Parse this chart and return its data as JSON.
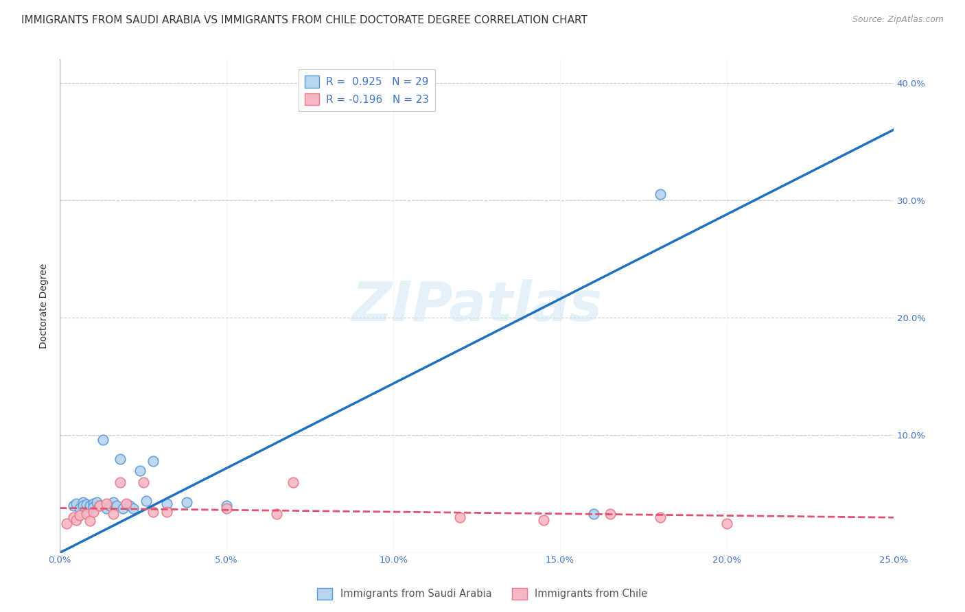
{
  "title": "IMMIGRANTS FROM SAUDI ARABIA VS IMMIGRANTS FROM CHILE DOCTORATE DEGREE CORRELATION CHART",
  "source": "Source: ZipAtlas.com",
  "ylabel": "Doctorate Degree",
  "xlim": [
    0.0,
    0.25
  ],
  "ylim": [
    0.0,
    0.42
  ],
  "xticks": [
    0.0,
    0.05,
    0.1,
    0.15,
    0.2,
    0.25
  ],
  "yticks": [
    0.0,
    0.1,
    0.2,
    0.3,
    0.4
  ],
  "xticklabels": [
    "0.0%",
    "5.0%",
    "10.0%",
    "15.0%",
    "20.0%",
    "25.0%"
  ],
  "yticklabels_right": [
    "",
    "10.0%",
    "20.0%",
    "30.0%",
    "40.0%"
  ],
  "watermark": "ZIPatlas",
  "legend_R1": "0.925",
  "legend_N1": "29",
  "legend_R2": "-0.196",
  "legend_N2": "23",
  "saudi_x": [
    0.004,
    0.005,
    0.006,
    0.007,
    0.007,
    0.008,
    0.009,
    0.009,
    0.01,
    0.01,
    0.011,
    0.012,
    0.013,
    0.014,
    0.015,
    0.016,
    0.017,
    0.018,
    0.019,
    0.021,
    0.022,
    0.024,
    0.026,
    0.028,
    0.032,
    0.038,
    0.05,
    0.16,
    0.18
  ],
  "saudi_y": [
    0.04,
    0.042,
    0.038,
    0.043,
    0.04,
    0.041,
    0.038,
    0.04,
    0.042,
    0.039,
    0.043,
    0.04,
    0.096,
    0.038,
    0.04,
    0.043,
    0.04,
    0.08,
    0.038,
    0.04,
    0.038,
    0.07,
    0.044,
    0.078,
    0.042,
    0.043,
    0.04,
    0.033,
    0.305
  ],
  "chile_x": [
    0.002,
    0.004,
    0.005,
    0.006,
    0.008,
    0.009,
    0.01,
    0.012,
    0.014,
    0.016,
    0.018,
    0.02,
    0.025,
    0.028,
    0.032,
    0.05,
    0.065,
    0.07,
    0.12,
    0.145,
    0.165,
    0.18,
    0.2
  ],
  "chile_y": [
    0.025,
    0.03,
    0.028,
    0.032,
    0.033,
    0.027,
    0.035,
    0.04,
    0.042,
    0.033,
    0.06,
    0.042,
    0.06,
    0.035,
    0.035,
    0.038,
    0.033,
    0.06,
    0.03,
    0.028,
    0.033,
    0.03,
    0.025
  ],
  "saudi_line_x": [
    0.0,
    0.25
  ],
  "saudi_line_y": [
    0.0,
    0.36
  ],
  "chile_line_x": [
    0.0,
    0.25
  ],
  "chile_line_y": [
    0.038,
    0.03
  ],
  "blue_edge": "#5b9bd5",
  "pink_edge": "#e87a8a",
  "blue_fill": "#b8d4ee",
  "pink_fill": "#f5b8c4",
  "blue_line_color": "#2070c0",
  "pink_line_color": "#e05070",
  "grid_color": "#cccccc",
  "bg_color": "#ffffff",
  "tick_color": "#4472c4",
  "text_color": "#333333",
  "title_fontsize": 11,
  "tick_fontsize": 9.5,
  "ylabel_fontsize": 10
}
